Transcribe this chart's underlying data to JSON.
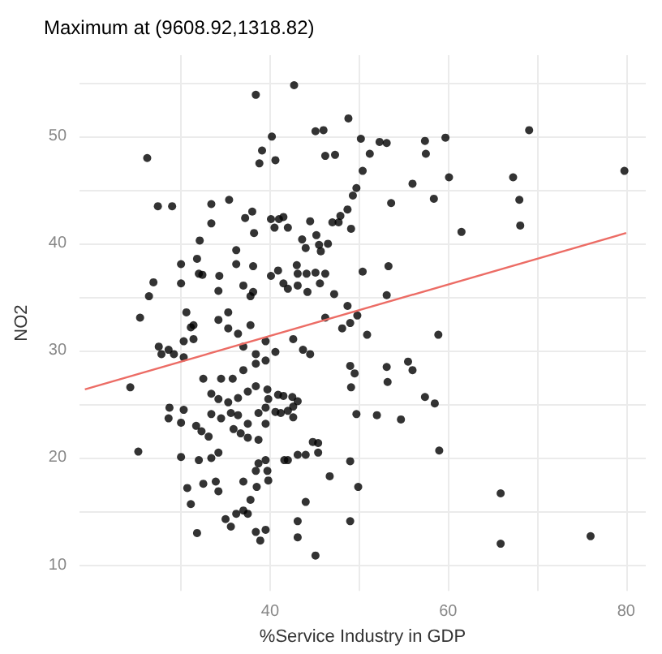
{
  "chart_data": {
    "type": "scatter",
    "title": "Maximum at (9608.92,1318.82)",
    "xlabel": "%Service Industry in GDP",
    "ylabel": "NO2",
    "xlim": [
      18.6,
      82.2
    ],
    "ylim": [
      7.6,
      57.6
    ],
    "xticks": [
      {
        "value": 30,
        "label": null
      },
      40,
      {
        "value": 50,
        "label": null
      },
      60,
      {
        "value": 70,
        "label": null
      },
      80
    ],
    "yticks": [
      10,
      {
        "value": 15,
        "label": null
      },
      20,
      {
        "value": 25,
        "label": null
      },
      30,
      {
        "value": 35,
        "label": null
      },
      40,
      {
        "value": 45,
        "label": null
      },
      50,
      {
        "value": 55,
        "label": null
      }
    ],
    "grid": true,
    "marker": "circle",
    "series": [
      {
        "color": "#000000",
        "x": [
          26.2,
          27.4,
          29.0,
          38.4,
          42.7,
          40.2,
          39.1,
          38.8,
          40.6,
          45.1,
          46.0,
          46.2,
          47.3,
          48.8,
          50.2,
          51.2,
          50.4,
          49.7,
          49.3,
          48.7,
          47.9,
          47.7,
          47.0,
          49.1,
          33.4,
          35.4,
          33.4,
          32.1,
          37.2,
          38.0,
          38.2,
          40.1,
          41.0,
          41.5,
          40.5,
          42.0,
          44.5,
          43.6,
          45.2,
          44.0,
          45.5,
          46.5,
          45.7,
          31.8,
          30.0,
          36.2,
          36.2,
          38.1,
          32.0,
          32.4,
          30.0,
          26.9,
          26.4,
          34.3,
          34.2,
          37.0,
          38.1,
          37.8,
          40.1,
          40.9,
          41.5,
          43.0,
          43.1,
          44.1,
          45.1,
          46.2,
          42.0,
          43.1,
          44.2,
          45.6,
          47.2,
          50.4,
          52.3,
          53.1,
          57.4,
          59.7,
          57.5,
          69.1,
          79.8,
          60.1,
          56.0,
          58.4,
          53.6,
          61.5,
          67.3,
          68.0,
          68.1,
          53.3,
          53.1,
          48.7,
          49.8,
          50.9,
          58.9,
          49.0,
          49.5,
          49.1,
          53.1,
          53.2,
          55.5,
          56.0,
          57.4,
          58.5,
          49.7,
          52.0,
          54.7,
          59.0,
          49.0,
          49.9,
          49.0,
          65.9,
          65.9,
          76.0,
          25.4,
          24.3,
          25.2,
          27.5,
          28.6,
          27.8,
          29.2,
          30.3,
          31.4,
          30.3,
          31.1,
          28.7,
          28.6,
          30.0,
          30.3,
          31.7,
          32.3,
          33.1,
          30.0,
          32.0,
          33.4,
          34.2,
          30.7,
          31.1,
          31.8,
          32.5,
          33.9,
          34.2,
          35.0,
          35.6,
          36.2,
          37.0,
          37.5,
          37.8,
          37.0,
          38.4,
          38.5,
          38.7,
          39.5,
          39.7,
          38.4,
          39.5,
          38.9,
          39.8,
          41.6,
          42.0,
          43.1,
          44.0,
          43.1,
          43.1,
          44.0,
          45.1,
          44.8,
          45.4,
          45.4,
          46.7,
          32.5,
          34.5,
          35.8,
          37.0,
          33.4,
          34.2,
          35.3,
          36.4,
          37.5,
          38.4,
          39.7,
          39.8,
          40.9,
          41.5,
          42.5,
          43.1,
          33.4,
          34.5,
          35.6,
          36.4,
          37.5,
          38.7,
          39.5,
          40.6,
          41.2,
          42.0,
          42.6,
          42.6,
          35.9,
          36.7,
          37.5,
          38.7,
          39.5,
          34.2,
          35.3,
          36.4,
          37.8,
          38.4,
          39.5,
          40.6,
          42.6,
          43.7,
          44.5,
          46.2,
          48.1,
          49.0,
          37.0,
          38.4,
          39.5,
          30.6,
          31.4,
          35.3
        ],
        "values": [
          48.0,
          43.5,
          43.5,
          53.9,
          54.8,
          50.0,
          48.7,
          47.5,
          47.8,
          50.5,
          50.6,
          48.2,
          48.3,
          51.7,
          49.8,
          48.4,
          46.8,
          45.2,
          44.5,
          43.2,
          42.6,
          42.0,
          42.0,
          41.4,
          43.7,
          44.1,
          41.9,
          40.3,
          42.4,
          43.0,
          41.0,
          42.3,
          42.3,
          42.5,
          41.5,
          41.5,
          42.1,
          40.4,
          40.8,
          39.6,
          39.9,
          40.0,
          39.3,
          38.6,
          38.1,
          39.4,
          38.1,
          37.9,
          37.2,
          37.1,
          36.3,
          36.4,
          35.1,
          37.0,
          35.6,
          36.1,
          35.5,
          35.1,
          37.0,
          37.5,
          36.3,
          38.0,
          37.2,
          37.2,
          37.3,
          37.2,
          35.8,
          36.1,
          35.5,
          36.3,
          35.3,
          37.4,
          49.5,
          49.4,
          49.6,
          49.9,
          48.4,
          50.6,
          46.8,
          46.2,
          45.6,
          44.2,
          43.8,
          41.1,
          46.2,
          44.1,
          41.7,
          37.9,
          35.2,
          34.2,
          33.3,
          31.5,
          31.5,
          28.6,
          27.9,
          26.6,
          28.5,
          27.1,
          29.0,
          28.2,
          25.7,
          25.1,
          24.1,
          24.0,
          23.6,
          20.7,
          19.7,
          17.3,
          14.1,
          16.7,
          12.0,
          12.7,
          33.1,
          26.6,
          20.6,
          30.4,
          30.1,
          29.7,
          29.7,
          30.9,
          31.1,
          29.4,
          32.2,
          24.7,
          23.7,
          23.3,
          24.5,
          23.0,
          22.5,
          22.0,
          20.1,
          19.8,
          20.0,
          20.5,
          17.2,
          15.7,
          13.0,
          17.6,
          17.8,
          16.9,
          14.3,
          13.6,
          14.8,
          15.1,
          14.8,
          16.1,
          17.8,
          18.8,
          17.3,
          19.5,
          19.8,
          18.8,
          13.1,
          13.3,
          12.3,
          17.9,
          19.8,
          19.8,
          20.3,
          20.3,
          14.1,
          12.6,
          15.9,
          10.9,
          21.5,
          20.5,
          21.4,
          18.3,
          27.4,
          27.4,
          27.4,
          28.2,
          26.0,
          25.5,
          25.2,
          25.6,
          26.2,
          26.7,
          26.4,
          25.5,
          25.9,
          25.8,
          25.7,
          25.3,
          24.1,
          23.7,
          24.2,
          24.0,
          23.2,
          24.2,
          24.7,
          24.3,
          24.2,
          24.4,
          23.8,
          24.8,
          22.7,
          22.3,
          21.9,
          21.7,
          23.2,
          32.9,
          32.1,
          31.6,
          32.4,
          29.7,
          30.9,
          29.9,
          31.1,
          30.1,
          29.7,
          33.1,
          32.1,
          32.6,
          30.4,
          28.8,
          29.1,
          33.6,
          32.4,
          33.6
        ]
      },
      {
        "type": "line",
        "color": "#ec6c65",
        "marker": "none",
        "x": [
          19.2,
          80.0
        ],
        "values": [
          26.4,
          41.0
        ]
      }
    ]
  }
}
